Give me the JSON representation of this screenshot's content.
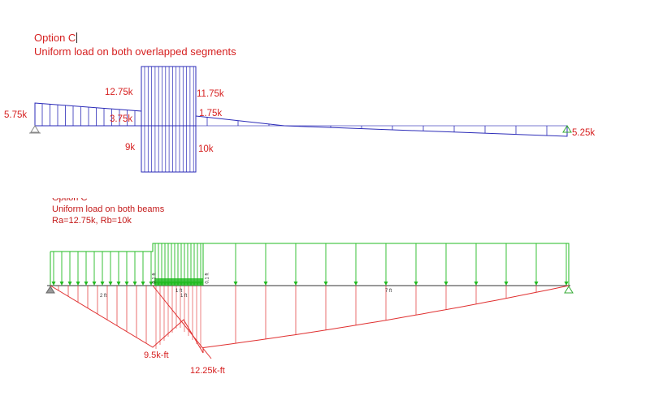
{
  "panel_top": {
    "title_line1": "Option C",
    "title_line2": "Uniform load on both overlapped segments",
    "labels": {
      "left_reaction": "5.75k",
      "shear_upper_left": "12.75k",
      "shear_mid_left": "3.75k",
      "shear_upper_right": "11.75k",
      "shear_mid_right": "1.75k",
      "shear_lower_left": "9k",
      "shear_lower_right": "10k",
      "right_reaction": "5.25k"
    },
    "colors": {
      "text": "#d62020",
      "diagram": "#2b2bb8",
      "axis": "#33aa33"
    }
  },
  "panel_bottom": {
    "title_line1": "Option C",
    "title_line2": "Uniform load on both beams",
    "title_line3": "Ra=12.75k, Rb=10k",
    "moment_labels": {
      "m1": "9.5k-ft",
      "m2": "12.25k-ft"
    },
    "dims": {
      "d1": "2 ft",
      "d2": "1 ft",
      "d3": "1 ft",
      "d4": "7 ft",
      "v1": "0.1 ft",
      "v2": "0.1 ft"
    },
    "colors": {
      "text": "#d62020",
      "load": "#22bb22",
      "moment": "#e03030"
    }
  }
}
